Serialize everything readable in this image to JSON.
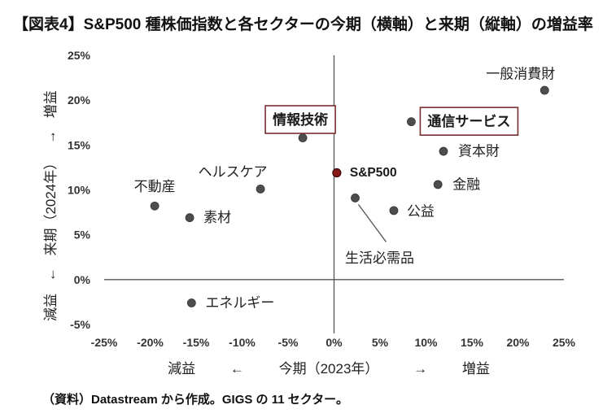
{
  "chart_data": {
    "type": "scatter",
    "title": "【図表4】S&P500 種株価指数と各セクターの今期（横軸）と来期（縦軸）の増益率",
    "xlabel": "減益 ← 今期（2023年） → 増益",
    "ylabel": "減益 ← 来期（2024年） → 増益",
    "source_note": "（資料）Datastream から作成。GIGS の 11 セクター。",
    "xlim": [
      -25,
      25
    ],
    "ylim": [
      -5,
      25
    ],
    "grid": false,
    "x_ticks": [
      {
        "value": -25,
        "label": "-25%"
      },
      {
        "value": -20,
        "label": "-20%"
      },
      {
        "value": -15,
        "label": "-15%"
      },
      {
        "value": -10,
        "label": "-10%"
      },
      {
        "value": -5,
        "label": "-5%"
      },
      {
        "value": 0,
        "label": "0%"
      },
      {
        "value": 5,
        "label": "5%"
      },
      {
        "value": 10,
        "label": "10%"
      },
      {
        "value": 15,
        "label": "15%"
      },
      {
        "value": 20,
        "label": "20%"
      },
      {
        "value": 25,
        "label": "25%"
      }
    ],
    "y_ticks": [
      {
        "value": 25,
        "label": "25%"
      },
      {
        "value": 20,
        "label": "20%"
      },
      {
        "value": 15,
        "label": "15%"
      },
      {
        "value": 10,
        "label": "10%"
      },
      {
        "value": 5,
        "label": "5%"
      },
      {
        "value": 0,
        "label": "0%"
      },
      {
        "value": -5,
        "label": "-5%"
      }
    ],
    "colors": {
      "point": "#4d4d4d",
      "highlight": "#8b1a1a",
      "box": "#7b2d2d",
      "axis": "#555555",
      "leader": "#555555"
    },
    "points": [
      {
        "label": "一般消費財",
        "x": 22.9,
        "y": 21.1
      },
      {
        "label": "通信サービス",
        "x": 8.4,
        "y": 17.6,
        "boxed": true
      },
      {
        "label": "情報技術",
        "x": -3.4,
        "y": 15.8,
        "boxed": true
      },
      {
        "label": "資本財",
        "x": 11.9,
        "y": 14.3
      },
      {
        "label": "S&P500",
        "x": 0.3,
        "y": 11.9,
        "highlight": true
      },
      {
        "label": "金融",
        "x": 11.3,
        "y": 10.6
      },
      {
        "label": "ヘルスケア",
        "x": -8.0,
        "y": 10.1
      },
      {
        "label": "生活必需品",
        "x": 2.3,
        "y": 9.1,
        "leader_line": true
      },
      {
        "label": "不動産",
        "x": -19.5,
        "y": 8.2
      },
      {
        "label": "公益",
        "x": 6.5,
        "y": 7.7
      },
      {
        "label": "素材",
        "x": -15.7,
        "y": 6.9
      },
      {
        "label": "エネルギー",
        "x": -15.5,
        "y": -2.6
      }
    ]
  }
}
